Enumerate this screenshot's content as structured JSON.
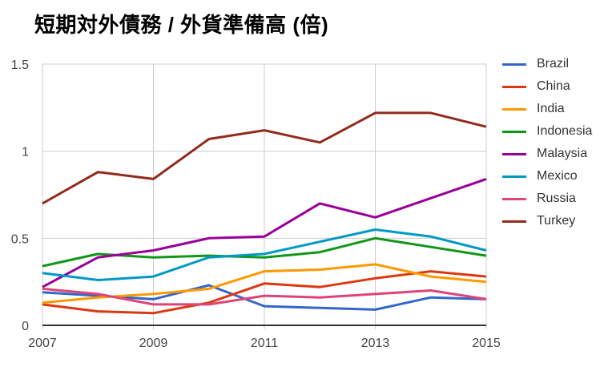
{
  "title": "短期対外債務 / 外貨準備高 (倍)",
  "colors": {
    "background": "#ffffff",
    "title": "#000000",
    "grid": "#cccccc",
    "axis": "#333333",
    "tick_label": "#444444",
    "legend_text": "#333333"
  },
  "chart_data": {
    "type": "line",
    "title": "短期対外債務 / 外貨準備高 (倍)",
    "xlabel": "",
    "ylabel": "",
    "xlim": [
      2007,
      2015
    ],
    "ylim": [
      0,
      1.5
    ],
    "grid": true,
    "legend_position": "right",
    "x": [
      2007,
      2008,
      2009,
      2010,
      2011,
      2012,
      2013,
      2014,
      2015
    ],
    "x_ticks": [
      {
        "value": 2007,
        "label": "2007"
      },
      {
        "value": 2009,
        "label": "2009"
      },
      {
        "value": 2011,
        "label": "2011"
      },
      {
        "value": 2013,
        "label": "2013"
      },
      {
        "value": 2015,
        "label": "2015"
      }
    ],
    "y_ticks": [
      {
        "value": 0,
        "label": "0"
      },
      {
        "value": 0.5,
        "label": "0.5"
      },
      {
        "value": 1,
        "label": "1"
      },
      {
        "value": 1.5,
        "label": "1.5"
      }
    ],
    "series": [
      {
        "name": "Brazil",
        "color": "#3366cc",
        "values": [
          0.19,
          0.17,
          0.15,
          0.23,
          0.11,
          0.1,
          0.09,
          0.16,
          0.15
        ]
      },
      {
        "name": "China",
        "color": "#dc3912",
        "values": [
          0.12,
          0.08,
          0.07,
          0.13,
          0.24,
          0.22,
          0.27,
          0.31,
          0.28
        ]
      },
      {
        "name": "India",
        "color": "#ff9900",
        "values": [
          0.13,
          0.16,
          0.18,
          0.21,
          0.31,
          0.32,
          0.35,
          0.28,
          0.25
        ]
      },
      {
        "name": "Indonesia",
        "color": "#109618",
        "values": [
          0.34,
          0.41,
          0.39,
          0.4,
          0.39,
          0.42,
          0.5,
          0.45,
          0.4
        ]
      },
      {
        "name": "Malaysia",
        "color": "#990099",
        "values": [
          0.22,
          0.39,
          0.43,
          0.5,
          0.51,
          0.7,
          0.62,
          0.73,
          0.84
        ]
      },
      {
        "name": "Mexico",
        "color": "#0099c6",
        "values": [
          0.3,
          0.26,
          0.28,
          0.39,
          0.41,
          0.48,
          0.55,
          0.51,
          0.43
        ]
      },
      {
        "name": "Russia",
        "color": "#dd4477",
        "values": [
          0.21,
          0.18,
          0.12,
          0.12,
          0.17,
          0.16,
          0.18,
          0.2,
          0.15
        ]
      },
      {
        "name": "Turkey",
        "color": "#922b1d",
        "values": [
          0.7,
          0.88,
          0.84,
          1.07,
          1.12,
          1.05,
          1.22,
          1.22,
          1.14
        ]
      }
    ]
  }
}
